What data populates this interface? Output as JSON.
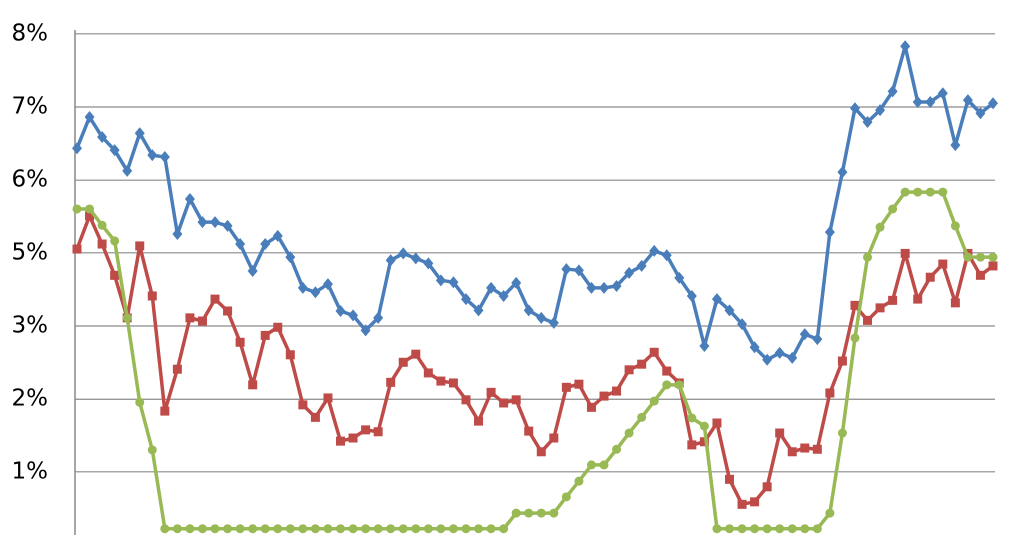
{
  "chart_data": {
    "type": "line",
    "categories": [
      null,
      null,
      null,
      null,
      null,
      null,
      null,
      null,
      null,
      null,
      null,
      null,
      null,
      null,
      null,
      null,
      null,
      null,
      null,
      null,
      null,
      null,
      null,
      null,
      null,
      null,
      null,
      null,
      null,
      null,
      null,
      null,
      null,
      null,
      null,
      null,
      null,
      null,
      null,
      null,
      null,
      null,
      null,
      null,
      null,
      null,
      null,
      null,
      null,
      null,
      null,
      null,
      null,
      null,
      null,
      null,
      null,
      null,
      null,
      null,
      null,
      null,
      null,
      null,
      null,
      null,
      null,
      null,
      null,
      null,
      null,
      null,
      null,
      null
    ],
    "ylim": [
      0.16,
      8.71
    ],
    "yticks": [
      {
        "value": 1.17,
        "label": "1%"
      },
      {
        "value": 2.33,
        "label": "2%"
      },
      {
        "value": 3.5,
        "label": "3%"
      },
      {
        "value": 4.67,
        "label": "5%"
      },
      {
        "value": 5.83,
        "label": "6%"
      },
      {
        "value": 7,
        "label": "7%"
      },
      {
        "value": 8.17,
        "label": "8%"
      }
    ],
    "grid": true,
    "series": [
      {
        "color": "#4a7ebb",
        "marker": "diamond",
        "values": [
          6.34,
          6.84,
          6.52,
          6.31,
          5.98,
          6.58,
          6.23,
          6.2,
          4.97,
          5.53,
          5.16,
          5.16,
          5.1,
          4.81,
          4.38,
          4.81,
          4.94,
          4.6,
          4.11,
          4.04,
          4.17,
          3.74,
          3.67,
          3.43,
          3.63,
          4.55,
          4.66,
          4.58,
          4.5,
          4.23,
          4.2,
          3.93,
          3.75,
          4.11,
          3.98,
          4.19,
          3.75,
          3.63,
          3.55,
          4.41,
          4.39,
          4.11,
          4.11,
          4.14,
          4.35,
          4.46,
          4.7,
          4.63,
          4.27,
          3.98,
          3.18,
          3.93,
          3.75,
          3.53,
          3.16,
          2.96,
          3.07,
          2.99,
          3.37,
          3.29,
          5.0,
          5.96,
          6.98,
          6.76,
          6.95,
          7.25,
          7.97,
          7.08,
          7.08,
          7.22,
          6.39,
          7.11,
          6.9,
          7.06
        ]
      },
      {
        "color": "#be4b48",
        "marker": "square",
        "values": [
          4.73,
          5.26,
          4.81,
          4.31,
          3.63,
          4.78,
          3.98,
          2.14,
          2.81,
          3.63,
          3.58,
          3.93,
          3.74,
          3.24,
          2.56,
          3.35,
          3.48,
          3.04,
          2.24,
          2.04,
          2.35,
          1.66,
          1.71,
          1.84,
          1.81,
          2.6,
          2.92,
          3.05,
          2.75,
          2.62,
          2.59,
          2.32,
          1.98,
          2.44,
          2.27,
          2.32,
          1.82,
          1.49,
          1.71,
          2.52,
          2.57,
          2.2,
          2.38,
          2.46,
          2.8,
          2.89,
          3.08,
          2.78,
          2.59,
          1.6,
          1.65,
          1.95,
          1.05,
          0.65,
          0.69,
          0.93,
          1.79,
          1.49,
          1.55,
          1.53,
          2.43,
          2.94,
          3.83,
          3.59,
          3.79,
          3.91,
          4.66,
          3.93,
          4.28,
          4.49,
          3.87,
          4.66,
          4.31,
          4.46
        ]
      },
      {
        "color": "#98b954",
        "marker": "circle",
        "values": [
          5.37,
          5.37,
          5.11,
          4.86,
          3.63,
          2.28,
          1.52,
          0.26,
          0.26,
          0.26,
          0.26,
          0.26,
          0.26,
          0.26,
          0.26,
          0.26,
          0.26,
          0.26,
          0.26,
          0.26,
          0.26,
          0.26,
          0.26,
          0.26,
          0.26,
          0.26,
          0.26,
          0.26,
          0.26,
          0.26,
          0.26,
          0.26,
          0.26,
          0.26,
          0.26,
          0.51,
          0.51,
          0.51,
          0.51,
          0.77,
          1.02,
          1.28,
          1.28,
          1.53,
          1.79,
          2.04,
          2.3,
          2.56,
          2.56,
          2.03,
          1.9,
          0.26,
          0.26,
          0.26,
          0.26,
          0.26,
          0.26,
          0.26,
          0.26,
          0.26,
          0.51,
          1.79,
          3.31,
          4.6,
          5.08,
          5.37,
          5.64,
          5.64,
          5.64,
          5.64,
          5.1,
          4.6,
          4.6,
          4.6
        ]
      }
    ]
  }
}
